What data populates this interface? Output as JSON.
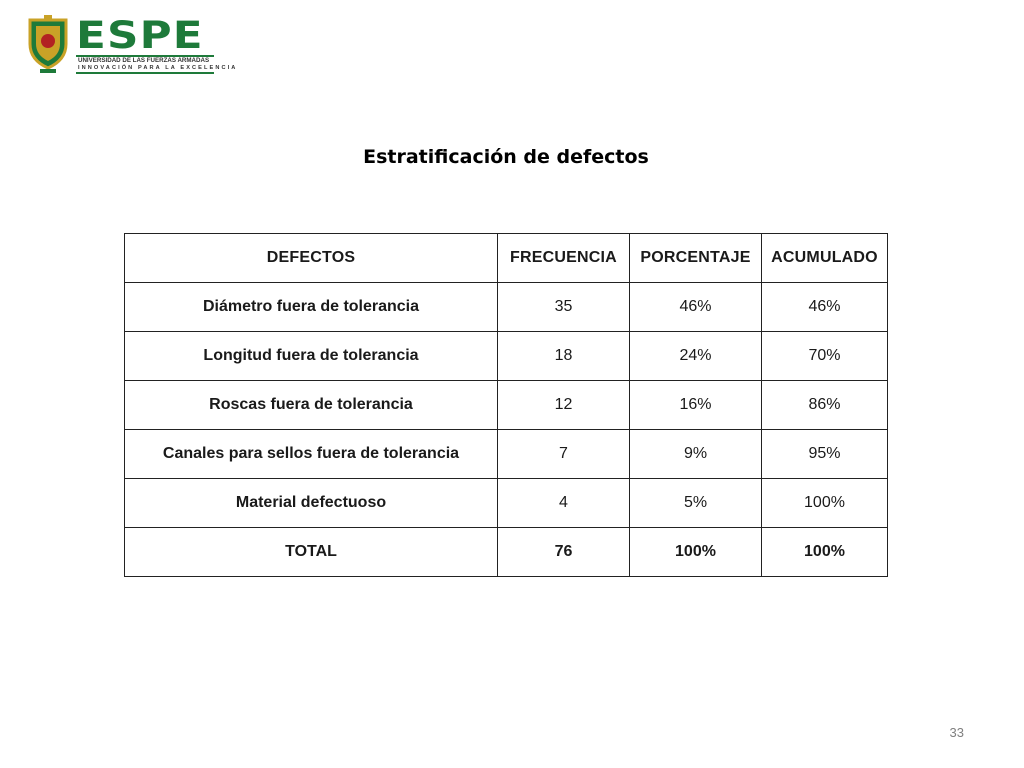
{
  "logo": {
    "wordmark": "ESPE",
    "subtitle": "UNIVERSIDAD DE LAS FUERZAS ARMADAS",
    "tagline": "INNOVACIÓN PARA LA EXCELENCIA",
    "emblem_icon": "university-shield-emblem",
    "brand_color": "#1e7a3a"
  },
  "slide": {
    "title": "Estratificación de defectos",
    "page_number": "33"
  },
  "chart_data": {
    "type": "table",
    "headers": [
      "DEFECTOS",
      "FRECUENCIA",
      "PORCENTAJE",
      "ACUMULADO"
    ],
    "rows": [
      [
        "Diámetro fuera de tolerancia",
        "35",
        "46%",
        "46%"
      ],
      [
        "Longitud fuera de tolerancia",
        "18",
        "24%",
        "70%"
      ],
      [
        "Roscas fuera de tolerancia",
        "12",
        "16%",
        "86%"
      ],
      [
        "Canales para sellos fuera de tolerancia",
        "7",
        "9%",
        "95%"
      ],
      [
        "Material defectuoso",
        "4",
        "5%",
        "100%"
      ],
      [
        "TOTAL",
        "76",
        "100%",
        "100%"
      ]
    ]
  }
}
